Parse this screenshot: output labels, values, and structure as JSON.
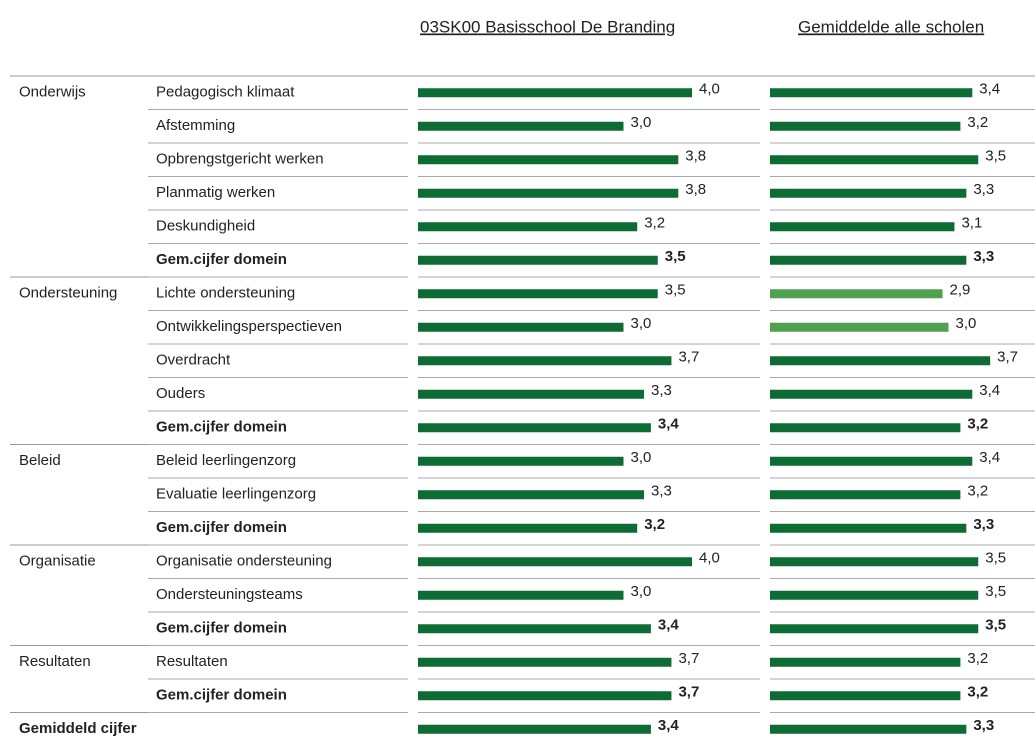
{
  "chart_data": {
    "type": "bar",
    "orientation": "horizontal",
    "xlim": [
      0,
      4
    ],
    "groups": [
      "Onderwijs",
      null,
      null,
      null,
      null,
      null,
      "Ondersteuning",
      null,
      null,
      null,
      null,
      "Beleid",
      null,
      null,
      "Organisatie",
      null,
      null,
      "Resultaten",
      null,
      "Gemiddeld cijfer"
    ],
    "categories": [
      "Pedagogisch klimaat",
      "Afstemming",
      "Opbrengstgericht werken",
      "Planmatig werken",
      "Deskundigheid",
      "Gem.cijfer domein",
      "Lichte ondersteuning",
      "Ontwikkelingsperspectieven",
      "Overdracht",
      "Ouders",
      "Gem.cijfer domein",
      "Beleid leerlingenzorg",
      "Evaluatie leerlingenzorg",
      "Gem.cijfer domein",
      "Organisatie ondersteuning",
      "Ondersteuningsteams",
      "Gem.cijfer domein",
      "Resultaten",
      "Gem.cijfer domein",
      null
    ],
    "bold": [
      false,
      false,
      false,
      false,
      false,
      true,
      false,
      false,
      false,
      false,
      true,
      false,
      false,
      true,
      false,
      false,
      true,
      false,
      true,
      true
    ],
    "series": [
      {
        "name": "03SK00 Basisschool De Branding",
        "colors": [
          "#0d6b34",
          "#0d6b34",
          "#0d6b34",
          "#0d6b34",
          "#0d6b34",
          "#0d6b34",
          "#0d6b34",
          "#0d6b34",
          "#0d6b34",
          "#0d6b34",
          "#0d6b34",
          "#0d6b34",
          "#0d6b34",
          "#0d6b34",
          "#0d6b34",
          "#0d6b34",
          "#0d6b34",
          "#0d6b34",
          "#0d6b34",
          "#0d6b34"
        ],
        "values": [
          4.0,
          3.0,
          3.8,
          3.8,
          3.2,
          3.5,
          3.5,
          3.0,
          3.7,
          3.3,
          3.4,
          3.0,
          3.3,
          3.2,
          4.0,
          3.0,
          3.4,
          3.7,
          3.7,
          3.4
        ],
        "value_labels": [
          "4,0",
          "3,0",
          "3,8",
          "3,8",
          "3,2",
          "3,5",
          "3,5",
          "3,0",
          "3,7",
          "3,3",
          "3,4",
          "3,0",
          "3,3",
          "3,2",
          "4,0",
          "3,0",
          "3,4",
          "3,7",
          "3,7",
          "3,4"
        ]
      },
      {
        "name": "Gemiddelde alle scholen",
        "colors": [
          "#0d6b34",
          "#0d6b34",
          "#0d6b34",
          "#0d6b34",
          "#0d6b34",
          "#0d6b34",
          "#4fa04f",
          "#4fa04f",
          "#0d6b34",
          "#0d6b34",
          "#0d6b34",
          "#0d6b34",
          "#0d6b34",
          "#0d6b34",
          "#0d6b34",
          "#0d6b34",
          "#0d6b34",
          "#0d6b34",
          "#0d6b34",
          "#0d6b34"
        ],
        "values": [
          3.4,
          3.2,
          3.5,
          3.3,
          3.1,
          3.3,
          2.9,
          3.0,
          3.7,
          3.4,
          3.2,
          3.4,
          3.2,
          3.3,
          3.5,
          3.5,
          3.5,
          3.2,
          3.2,
          3.3
        ],
        "value_labels": [
          "3,4",
          "3,2",
          "3,5",
          "3,3",
          "3,1",
          "3,3",
          "2,9",
          "3,0",
          "3,7",
          "3,4",
          "3,2",
          "3,4",
          "3,2",
          "3,3",
          "3,5",
          "3,5",
          "3,5",
          "3,2",
          "3,2",
          "3,3"
        ]
      }
    ]
  }
}
